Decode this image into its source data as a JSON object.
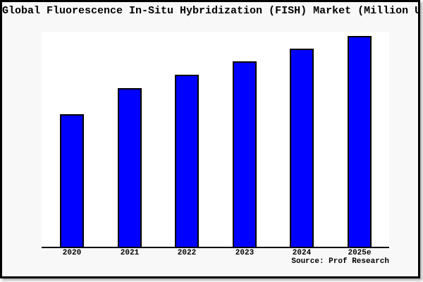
{
  "title": "Global Fluorescence In-Situ Hybridization (FISH) Market (Million USD)",
  "source": "Source: Prof Research",
  "colors": {
    "bar_fill": "#0000ff",
    "bar_edge": "#000000",
    "figure_background": "#f8f8f8",
    "plot_background": "#ffffff",
    "axis": "#000000",
    "text": "#000000",
    "outer_border": "#000000"
  },
  "chart_data": {
    "type": "bar",
    "title": "Global Fluorescence In-Situ Hybridization (FISH) Market (Million USD)",
    "categories": [
      "2020",
      "2021",
      "2022",
      "2023",
      "2024",
      "2025e"
    ],
    "values": [
      62.9,
      75.3,
      81.6,
      88.0,
      94.0,
      100.0
    ],
    "value_note": "Y-axis has no tick labels or gridlines in the image; values are relative bar heights normalized to 2025e = 100.",
    "xlabel": "",
    "ylabel": "",
    "ylim": [
      0,
      102
    ],
    "grid": false,
    "legend": "none",
    "annotation": "Source: Prof Research"
  }
}
